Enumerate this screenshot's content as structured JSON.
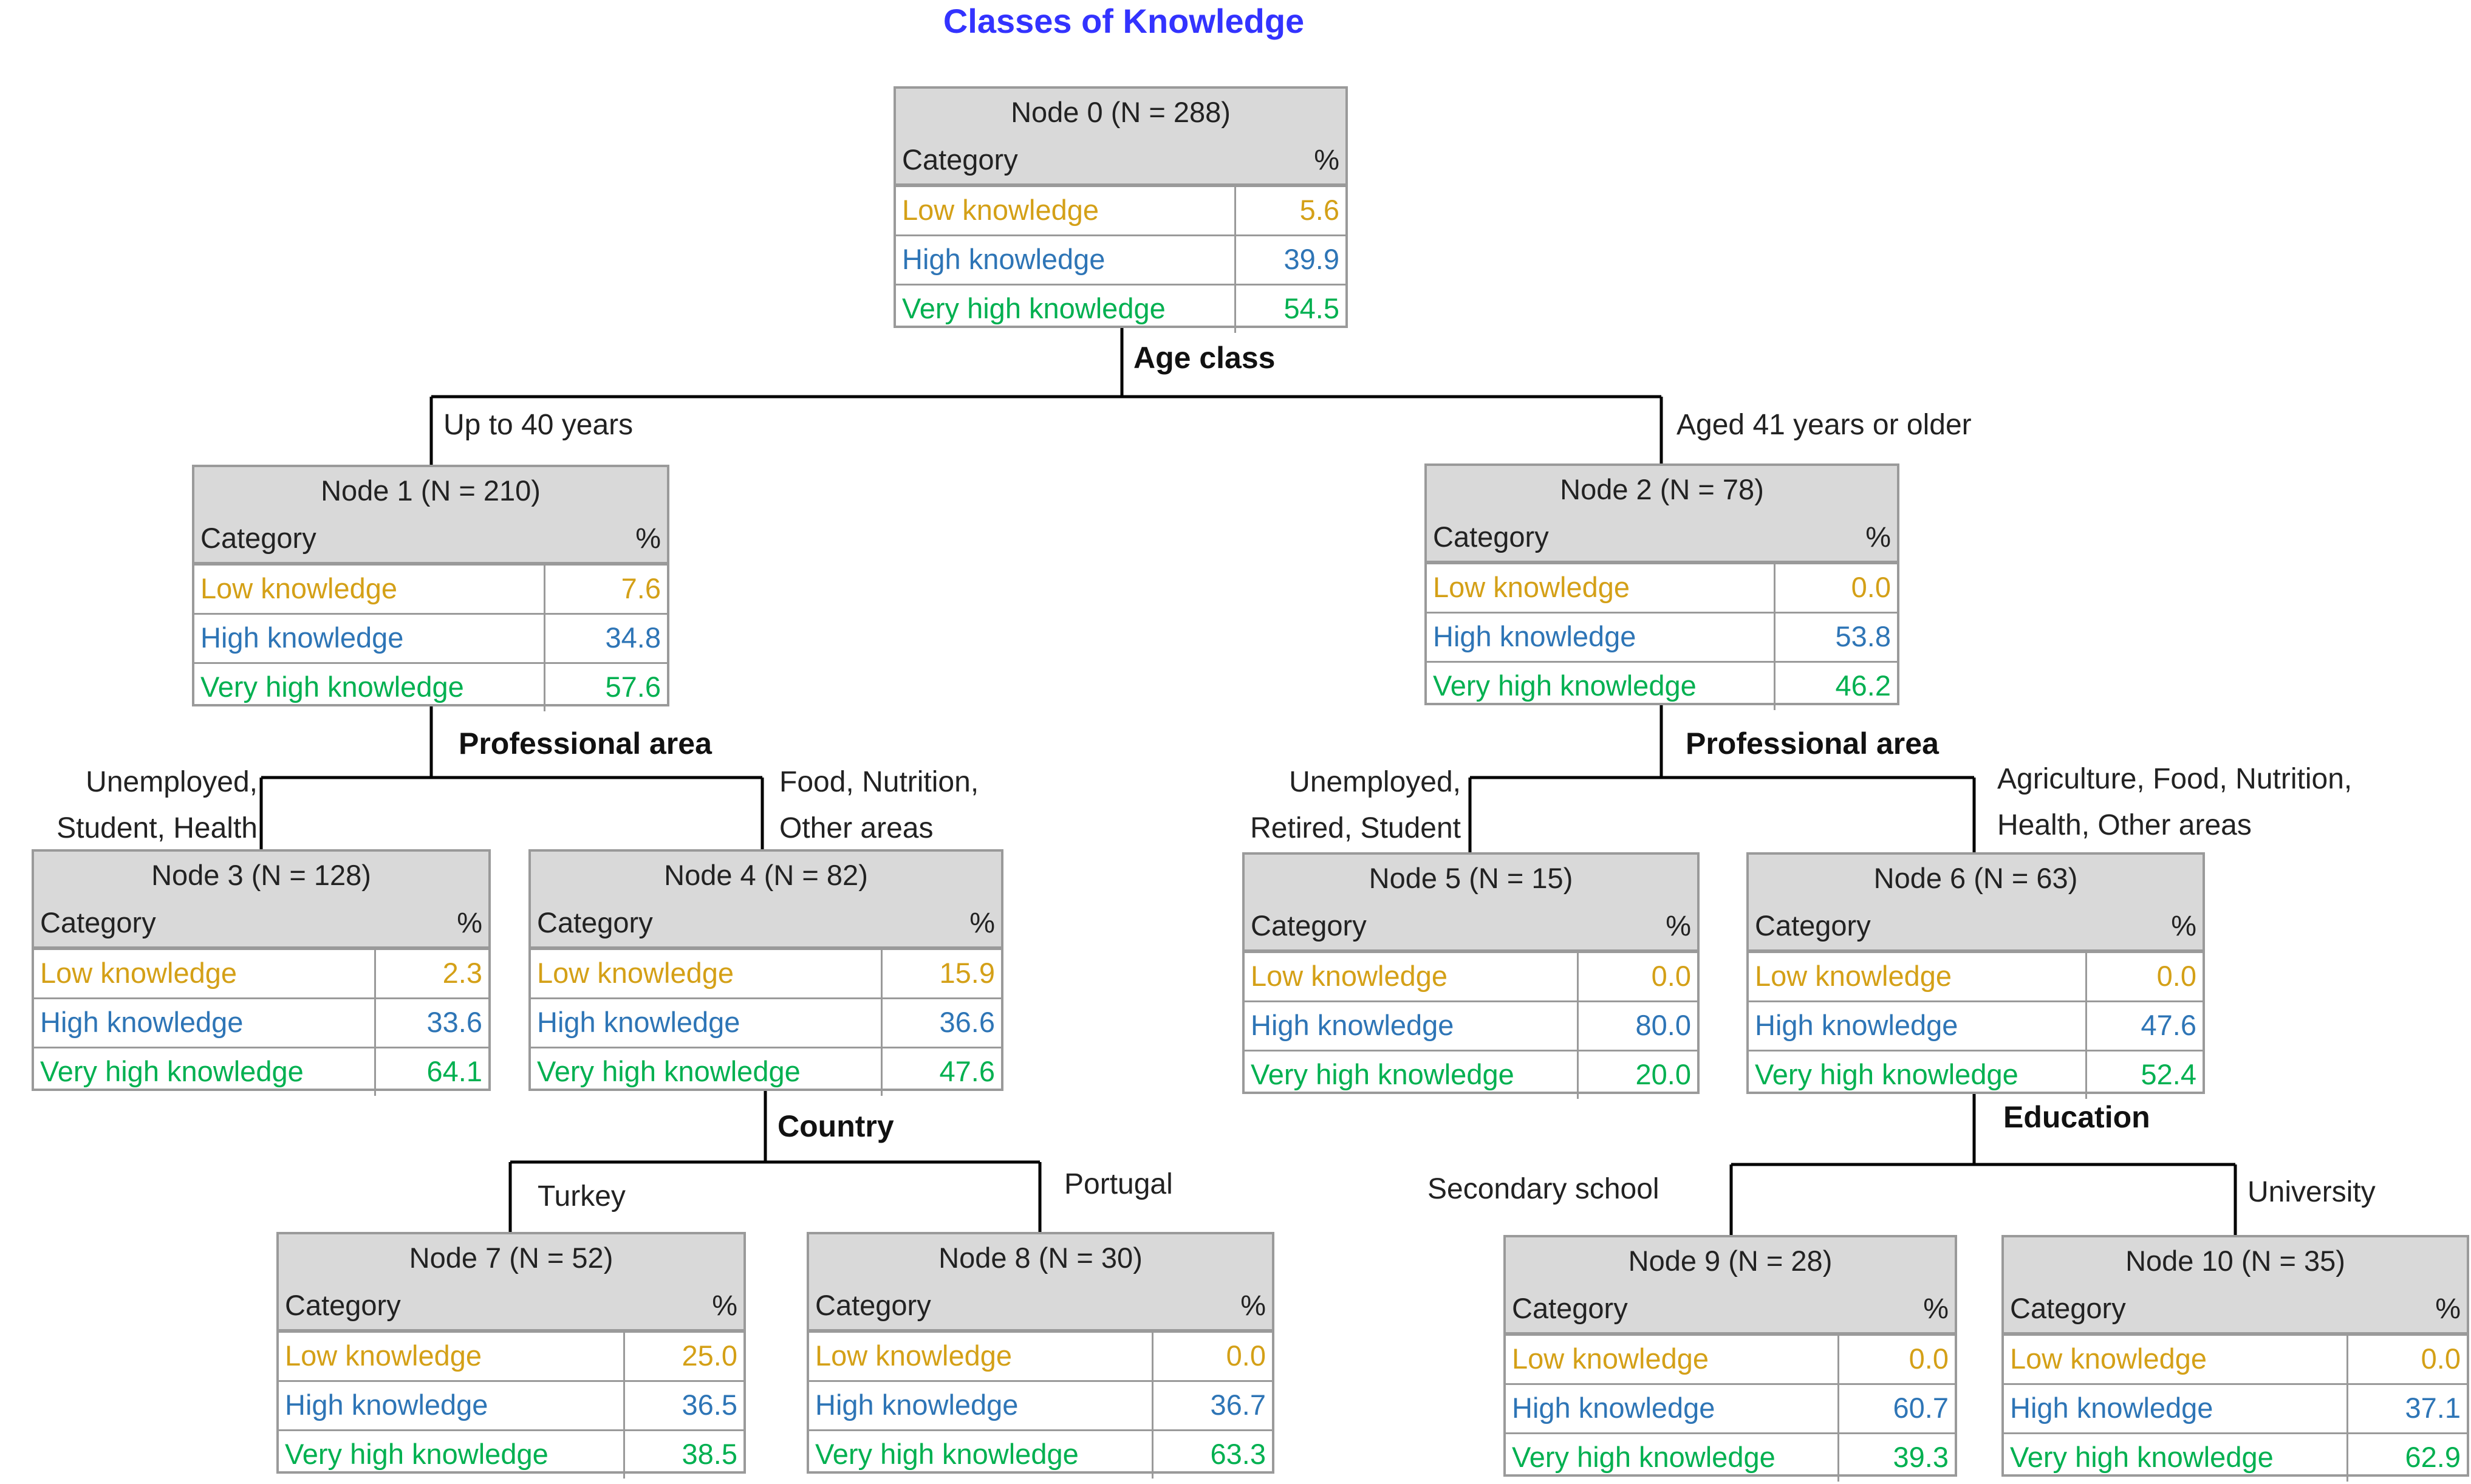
{
  "title": "Classes of Knowledge",
  "category_header": "Category",
  "percent_header": "%",
  "row_labels": {
    "low": "Low knowledge",
    "high": "High knowledge",
    "very_high": "Very high knowledge"
  },
  "colors": {
    "low": "#d4a017",
    "high": "#2e75b6",
    "very_high": "#00b050",
    "title": "#3333ff"
  },
  "nodes": [
    {
      "title": "Node 0 (N = 288)",
      "low": "5.6",
      "high": "39.9",
      "very_high": "54.5"
    },
    {
      "title": "Node 1 (N = 210)",
      "low": "7.6",
      "high": "34.8",
      "very_high": "57.6"
    },
    {
      "title": "Node 2 (N = 78)",
      "low": "0.0",
      "high": "53.8",
      "very_high": "46.2"
    },
    {
      "title": "Node 3 (N = 128)",
      "low": "2.3",
      "high": "33.6",
      "very_high": "64.1"
    },
    {
      "title": "Node 4 (N = 82)",
      "low": "15.9",
      "high": "36.6",
      "very_high": "47.6"
    },
    {
      "title": "Node 5 (N = 15)",
      "low": "0.0",
      "high": "80.0",
      "very_high": "20.0"
    },
    {
      "title": "Node 6 (N = 63)",
      "low": "0.0",
      "high": "47.6",
      "very_high": "52.4"
    },
    {
      "title": "Node 7 (N = 52)",
      "low": "25.0",
      "high": "36.5",
      "very_high": "38.5"
    },
    {
      "title": "Node 8 (N = 30)",
      "low": "0.0",
      "high": "36.7",
      "very_high": "63.3"
    },
    {
      "title": "Node 9 (N = 28)",
      "low": "0.0",
      "high": "60.7",
      "very_high": "39.3"
    },
    {
      "title": "Node 10 (N = 35)",
      "low": "0.0",
      "high": "37.1",
      "very_high": "62.9"
    }
  ],
  "splits": {
    "age_class": "Age class",
    "professional_area_left": "Professional area",
    "professional_area_right": "Professional area",
    "country": "Country",
    "education": "Education"
  },
  "branches": {
    "up_to_40": "Up to 40 years",
    "aged_41": "Aged  41 years or older",
    "unemployed_student_health": "Unemployed,\nStudent,  Health",
    "food_nutrition_other": "Food, Nutrition,\nOther areas",
    "unemployed_retired_student": "Unemployed,\nRetired, Student",
    "agri_food_nutrition_health_other": "Agriculture, Food, Nutrition,\nHealth, Other areas",
    "turkey": "Turkey",
    "portugal": "Portugal",
    "secondary_school": "Secondary school",
    "university": "University"
  }
}
